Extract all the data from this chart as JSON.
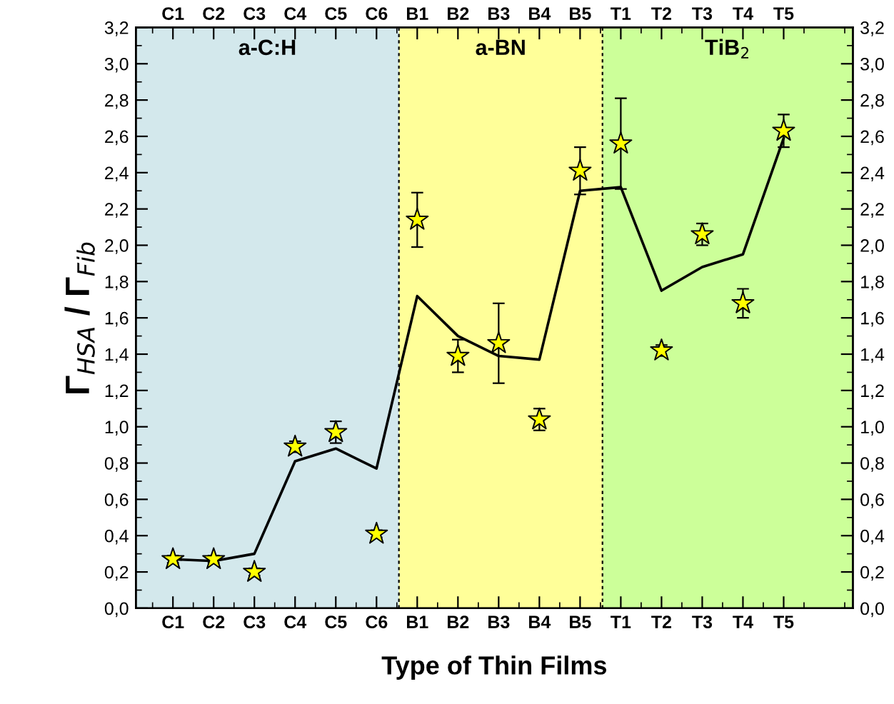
{
  "chart_data": {
    "type": "scatter",
    "xlabel": "Type of Thin Films",
    "ylabel": "Γ$_{HSA}$ / Γ$_{Fib}$",
    "categories": [
      "C1",
      "C2",
      "C3",
      "C4",
      "C5",
      "C6",
      "B1",
      "B2",
      "B3",
      "B4",
      "B5",
      "T1",
      "T2",
      "T3",
      "T4",
      "T5"
    ],
    "series": [
      {
        "color": "#ffff00",
        "marker": "star",
        "values": [
          0.27,
          0.27,
          0.2,
          0.89,
          0.97,
          0.41,
          2.14,
          1.39,
          1.46,
          1.04,
          2.41,
          2.56,
          1.42,
          2.06,
          1.68,
          2.63
        ],
        "errors": [
          0.02,
          0.02,
          0.02,
          0.03,
          0.06,
          0.02,
          0.15,
          0.09,
          0.22,
          0.06,
          0.13,
          0.25,
          0.03,
          0.06,
          0.08,
          0.09
        ]
      },
      {
        "type": "line",
        "color": "#000000",
        "line_style": "solid",
        "marker": "none",
        "values": [
          0.27,
          0.26,
          0.3,
          0.81,
          0.88,
          0.77,
          1.72,
          1.5,
          1.39,
          1.37,
          2.3,
          2.32,
          1.75,
          1.88,
          1.95,
          2.59
        ]
      }
    ],
    "bands": [
      {
        "axis": "x",
        "from": "C1",
        "to": "C6",
        "label": "a-C:H",
        "color": "#d3e8ec"
      },
      {
        "axis": "x",
        "from": "B1",
        "to": "B5",
        "label": "a-BN",
        "color": "#ffff99"
      },
      {
        "axis": "x",
        "from": "T1",
        "to": "T5",
        "label": "TiB$_{2}$",
        "color": "#ccff99"
      }
    ],
    "ylim": [
      0,
      3.2
    ],
    "yticks": [
      {
        "value": 0,
        "label": "0,0"
      },
      {
        "value": 0.2,
        "label": "0,2"
      },
      {
        "value": 0.4,
        "label": "0,4"
      },
      {
        "value": 0.6,
        "label": "0,6"
      },
      {
        "value": 0.8,
        "label": "0,8"
      },
      {
        "value": 1.0,
        "label": "1,0"
      },
      {
        "value": 1.2,
        "label": "1,2"
      },
      {
        "value": 1.4,
        "label": "1,4"
      },
      {
        "value": 1.6,
        "label": "1,6"
      },
      {
        "value": 1.8,
        "label": "1,8"
      },
      {
        "value": 2.0,
        "label": "2,0"
      },
      {
        "value": 2.2,
        "label": "2,2"
      },
      {
        "value": 2.4,
        "label": "2,4"
      },
      {
        "value": 2.6,
        "label": "2,6"
      },
      {
        "value": 2.8,
        "label": "2,8"
      },
      {
        "value": 3.0,
        "label": "3,0"
      },
      {
        "value": 3.2,
        "label": "3,2"
      }
    ],
    "y2lim": [
      0,
      3.2
    ],
    "y2ticks": [
      {
        "value": 0,
        "label": "0,0"
      },
      {
        "value": 0.2,
        "label": "0,2"
      },
      {
        "value": 0.4,
        "label": "0,4"
      },
      {
        "value": 0.6,
        "label": "0,6"
      },
      {
        "value": 0.8,
        "label": "0,8"
      },
      {
        "value": 1.0,
        "label": "1,0"
      },
      {
        "value": 1.2,
        "label": "1,2"
      },
      {
        "value": 1.4,
        "label": "1,4"
      },
      {
        "value": 1.6,
        "label": "1,6"
      },
      {
        "value": 1.8,
        "label": "1,8"
      },
      {
        "value": 2.0,
        "label": "2,0"
      },
      {
        "value": 2.2,
        "label": "2,2"
      },
      {
        "value": 2.4,
        "label": "2,4"
      },
      {
        "value": 2.6,
        "label": "2,6"
      },
      {
        "value": 2.8,
        "label": "2,8"
      },
      {
        "value": 3.0,
        "label": "3,0"
      },
      {
        "value": 3.2,
        "label": "3,2"
      }
    ],
    "grid": false,
    "legend": false
  }
}
